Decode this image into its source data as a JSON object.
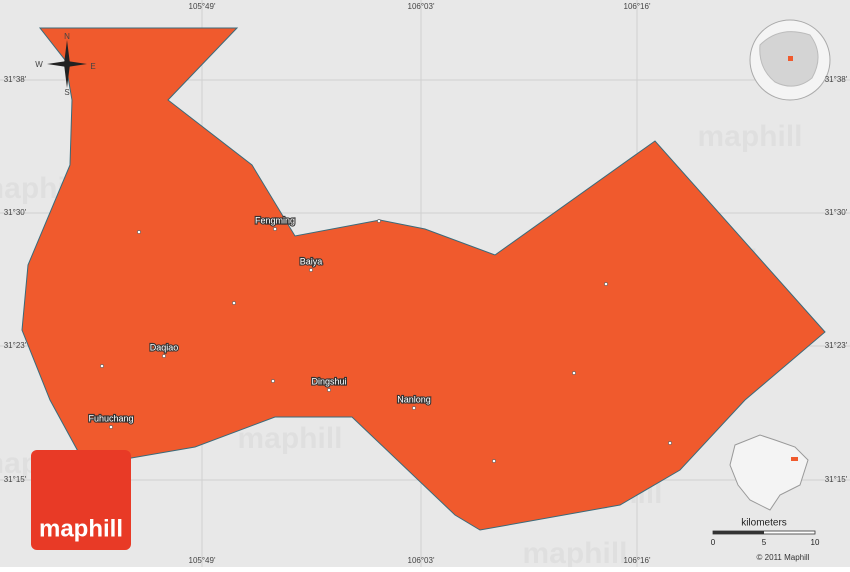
{
  "map": {
    "longitudes": [
      "105°49'",
      "106°03'",
      "106°16'"
    ],
    "latitudes": [
      "31°38'",
      "31°30'",
      "31°23'",
      "31°15'"
    ],
    "compass": {
      "north": "N",
      "south": "S",
      "east": "E",
      "west": "W"
    },
    "places": [
      "Fengming",
      "Baiya",
      "Daqiao",
      "Dingshui",
      "Nanlong",
      "Fuhuchang"
    ],
    "watermark": "maphill",
    "logo": "maphill",
    "scale": {
      "title": "kilometers",
      "ticks": [
        "0",
        "5",
        "10"
      ]
    },
    "copyright": "© 2011 Maphill"
  }
}
